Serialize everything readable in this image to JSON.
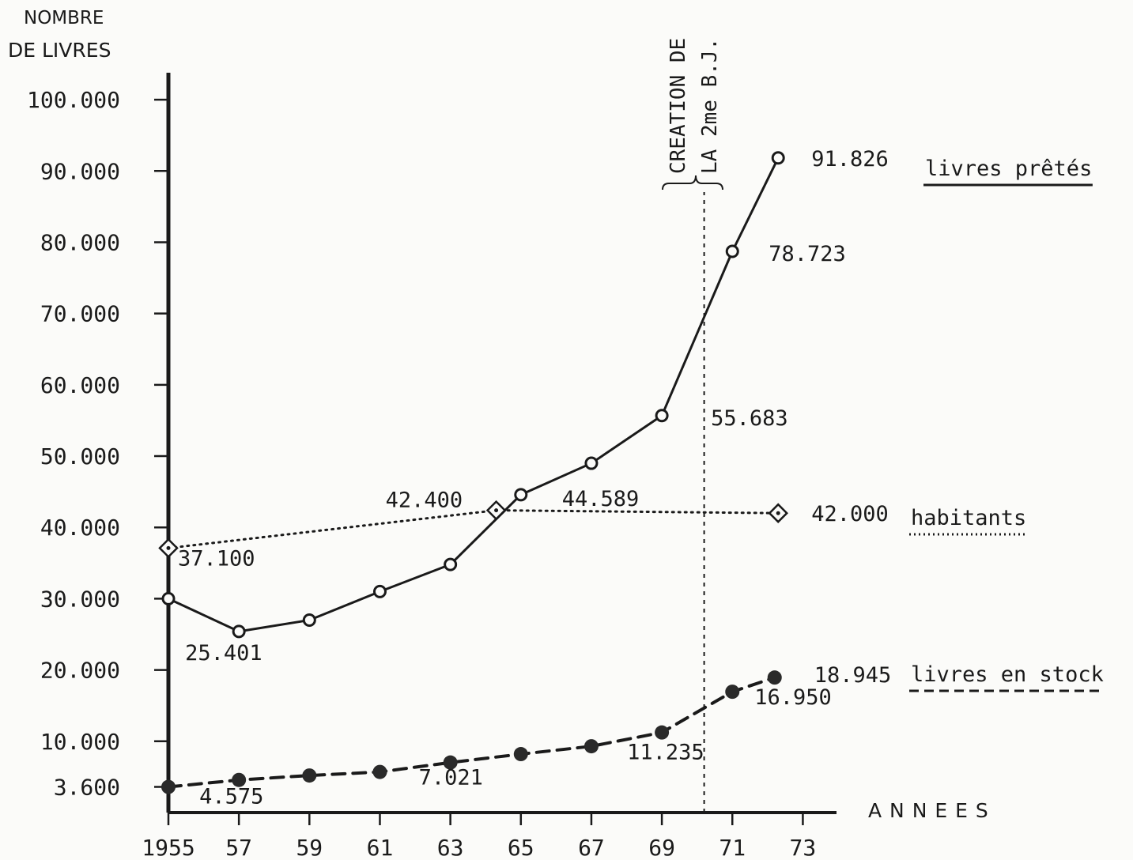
{
  "chart_data": {
    "type": "line",
    "y_label_lines": [
      "NOMBRE",
      "DE LIVRES"
    ],
    "x_axis_label": "A N N E E S",
    "x_ticks": [
      "1955",
      "57",
      "59",
      "61",
      "63",
      "65",
      "67",
      "69",
      "71",
      "73"
    ],
    "x_tick_values": [
      1955,
      1957,
      1959,
      1961,
      1963,
      1965,
      1967,
      1969,
      1971,
      1973
    ],
    "y_ticks": [
      "3.600",
      "10.000",
      "20.000",
      "30.000",
      "40.000",
      "50.000",
      "60.000",
      "70.000",
      "80.000",
      "90.000",
      "100.000"
    ],
    "y_tick_values": [
      3600,
      10000,
      20000,
      30000,
      40000,
      50000,
      60000,
      70000,
      80000,
      90000,
      100000
    ],
    "xlim": [
      1955,
      1974
    ],
    "ylim": [
      0,
      104000
    ],
    "annotation": {
      "lines": [
        "CREATION DE",
        "LA 2me B.J."
      ],
      "x": 1970.2
    },
    "series": [
      {
        "name": "livres prêtés",
        "style": "solid",
        "marker": "open-circle",
        "color": "#1a1a1a",
        "x": [
          1955,
          1957,
          1959,
          1961,
          1963,
          1965,
          1967,
          1969,
          1971,
          1972.3
        ],
        "y": [
          30000,
          25401,
          27000,
          31000,
          34800,
          44589,
          49000,
          55683,
          78723,
          91826
        ],
        "labels": [
          {
            "i": 1,
            "text": "25.401"
          },
          {
            "i": 5,
            "text": "44.589"
          },
          {
            "i": 7,
            "text": "55.683"
          },
          {
            "i": 8,
            "text": "78.723"
          },
          {
            "i": 9,
            "text": "91.826"
          }
        ]
      },
      {
        "name": "habitants",
        "style": "dotted",
        "marker": "diamond",
        "color": "#1a1a1a",
        "x": [
          1955,
          1964.3,
          1972.3
        ],
        "y": [
          37100,
          42400,
          42000
        ],
        "labels": [
          {
            "i": 0,
            "text": "37.100"
          },
          {
            "i": 1,
            "text": "42.400"
          },
          {
            "i": 2,
            "text": "42.000"
          }
        ]
      },
      {
        "name": "livres en stock",
        "style": "dashed",
        "marker": "filled-circle",
        "color": "#1a1a1a",
        "x": [
          1955,
          1957,
          1959,
          1961,
          1963,
          1965,
          1967,
          1969,
          1971,
          1972.2
        ],
        "y": [
          3600,
          4575,
          5200,
          5700,
          7021,
          8200,
          9300,
          11235,
          16950,
          18945
        ],
        "labels": [
          {
            "i": 1,
            "text": "4.575"
          },
          {
            "i": 4,
            "text": "7.021"
          },
          {
            "i": 7,
            "text": "11.235"
          },
          {
            "i": 8,
            "text": "16.950"
          },
          {
            "i": 9,
            "text": "18.945"
          }
        ]
      }
    ]
  }
}
